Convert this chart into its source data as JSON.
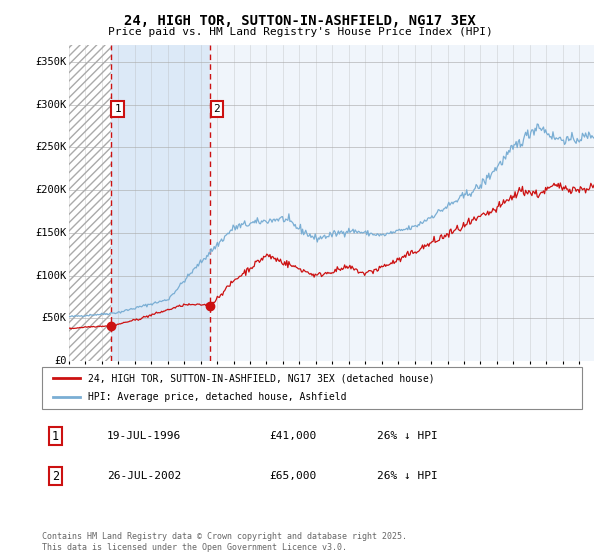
{
  "title": "24, HIGH TOR, SUTTON-IN-ASHFIELD, NG17 3EX",
  "subtitle": "Price paid vs. HM Land Registry's House Price Index (HPI)",
  "ylim": [
    0,
    370000
  ],
  "yticks": [
    0,
    50000,
    100000,
    150000,
    200000,
    250000,
    300000,
    350000
  ],
  "ytick_labels": [
    "£0",
    "£50K",
    "£100K",
    "£150K",
    "£200K",
    "£250K",
    "£300K",
    "£350K"
  ],
  "hpi_color": "#7aaed4",
  "price_color": "#cc1111",
  "marker_color": "#cc1111",
  "bg_color": "#dce9f7",
  "grid_color": "#aaaaaa",
  "legend_label_price": "24, HIGH TOR, SUTTON-IN-ASHFIELD, NG17 3EX (detached house)",
  "legend_label_hpi": "HPI: Average price, detached house, Ashfield",
  "purchase1_label": "1",
  "purchase1_date": "19-JUL-1996",
  "purchase1_price": "£41,000",
  "purchase1_hpi": "26% ↓ HPI",
  "purchase2_label": "2",
  "purchase2_date": "26-JUL-2002",
  "purchase2_price": "£65,000",
  "purchase2_hpi": "26% ↓ HPI",
  "footer": "Contains HM Land Registry data © Crown copyright and database right 2025.\nThis data is licensed under the Open Government Licence v3.0.",
  "purchase1_year": 1996.55,
  "purchase2_year": 2002.57,
  "xmin": 1994,
  "xmax": 2025.9
}
